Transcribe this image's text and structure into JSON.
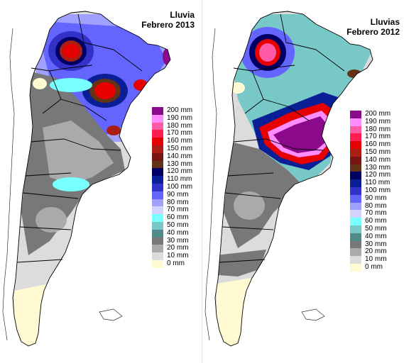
{
  "maps": [
    {
      "title_line1": "Lluvia",
      "title_line2": "Febrero 2013"
    },
    {
      "title_line1": "Lluvias",
      "title_line2": "Febrero 2012"
    }
  ],
  "legend": [
    {
      "label": "200 mm",
      "color": "#8b0a8b"
    },
    {
      "label": "190 mm",
      "color": "#ff8cff"
    },
    {
      "label": "180 mm",
      "color": "#ff5aa5"
    },
    {
      "label": "170 mm",
      "color": "#ff1e50"
    },
    {
      "label": "160 mm",
      "color": "#e60000"
    },
    {
      "label": "150 mm",
      "color": "#aa1e14"
    },
    {
      "label": "140 mm",
      "color": "#781414"
    },
    {
      "label": "130 mm",
      "color": "#643214"
    },
    {
      "label": "120 mm",
      "color": "#000064"
    },
    {
      "label": "110 mm",
      "color": "#0a1e96"
    },
    {
      "label": "100 mm",
      "color": "#3232c8"
    },
    {
      "label": "90 mm",
      "color": "#6464ff"
    },
    {
      "label": "80 mm",
      "color": "#a0a0ff"
    },
    {
      "label": "70 mm",
      "color": "#d2d2ff"
    },
    {
      "label": "60 mm",
      "color": "#78ffff"
    },
    {
      "label": "50 mm",
      "color": "#78c8c8"
    },
    {
      "label": "40 mm",
      "color": "#508c8c"
    },
    {
      "label": "30 mm",
      "color": "#787878"
    },
    {
      "label": "20 mm",
      "color": "#aaaaaa"
    },
    {
      "label": "10 mm",
      "color": "#dcdcdc"
    },
    {
      "label": "0 mm",
      "color": "#fffad2"
    }
  ]
}
